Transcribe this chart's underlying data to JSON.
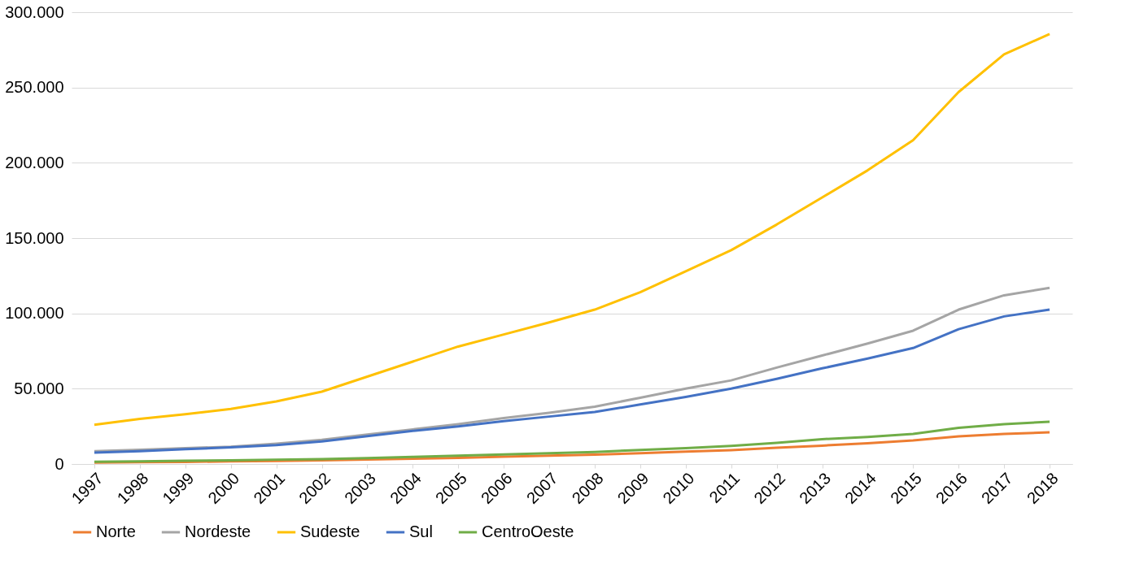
{
  "chart_data": {
    "type": "line",
    "categories": [
      "1997",
      "1998",
      "1999",
      "2000",
      "2001",
      "2002",
      "2003",
      "2004",
      "2005",
      "2006",
      "2007",
      "2008",
      "2009",
      "2010",
      "2011",
      "2012",
      "2013",
      "2014",
      "2015",
      "2016",
      "2017",
      "2018"
    ],
    "series": [
      {
        "name": "Norte",
        "color": "#ed7d31",
        "values": [
          1000,
          1200,
          1400,
          1700,
          2000,
          2400,
          2900,
          3500,
          4000,
          4800,
          5500,
          6200,
          7200,
          8200,
          9200,
          10800,
          12200,
          13800,
          15700,
          18300,
          20000,
          21000
        ]
      },
      {
        "name": "Nordeste",
        "color": "#a5a5a5",
        "values": [
          8500,
          9500,
          10500,
          11500,
          13500,
          16000,
          19500,
          23000,
          26500,
          30500,
          34000,
          38000,
          44000,
          50000,
          55500,
          64000,
          72000,
          80000,
          88500,
          102500,
          112000,
          117000
        ]
      },
      {
        "name": "Sudeste",
        "color": "#ffc000",
        "values": [
          26000,
          30000,
          33000,
          36500,
          41500,
          48000,
          58000,
          68000,
          78000,
          86000,
          94000,
          102500,
          114000,
          128000,
          142000,
          159000,
          177000,
          195000,
          215000,
          247000,
          272000,
          285500
        ]
      },
      {
        "name": "Sul",
        "color": "#4472c4",
        "values": [
          7500,
          8500,
          9800,
          11000,
          12500,
          15000,
          18500,
          22000,
          25000,
          28500,
          31500,
          34500,
          39500,
          44500,
          50000,
          56500,
          63500,
          70000,
          77000,
          89500,
          98000,
          102500
        ]
      },
      {
        "name": "CentroOeste",
        "color": "#70ad47",
        "values": [
          1500,
          1800,
          2100,
          2400,
          2900,
          3300,
          3900,
          4700,
          5500,
          6400,
          7200,
          8000,
          9300,
          10500,
          12000,
          14000,
          16500,
          18000,
          20000,
          24000,
          26500,
          28000
        ]
      }
    ],
    "ylim": [
      0,
      300000
    ],
    "yticks": [
      {
        "value": 0,
        "label": "0"
      },
      {
        "value": 50000,
        "label": "50.000"
      },
      {
        "value": 100000,
        "label": "100.000"
      },
      {
        "value": 150000,
        "label": "150.000"
      },
      {
        "value": 200000,
        "label": "200.000"
      },
      {
        "value": 250000,
        "label": "250.000"
      },
      {
        "value": 300000,
        "label": "300.000"
      }
    ],
    "grid": "y",
    "legend": "bottom",
    "marker": "none",
    "line_style": "solid"
  }
}
